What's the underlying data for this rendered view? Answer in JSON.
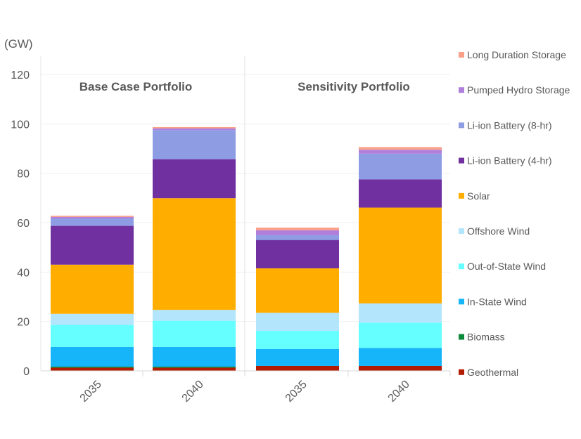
{
  "chart_data": {
    "type": "bar",
    "stacked": true,
    "unit_label": "(GW)",
    "ylim": [
      0,
      120
    ],
    "yticks": [
      0,
      20,
      40,
      60,
      80,
      100,
      120
    ],
    "grid": true,
    "legend_position": "right",
    "panels": [
      {
        "title": "Base Case Portfolio",
        "categories": [
          "2035",
          "2040"
        ]
      },
      {
        "title": "Sensitivity Portfolio",
        "categories": [
          "2035",
          "2040"
        ]
      }
    ],
    "series": [
      {
        "name": "Geothermal",
        "color": "#B31B00",
        "values": [
          1.3,
          1.3,
          2.0,
          2.0
        ]
      },
      {
        "name": "Biomass",
        "color": "#0A8A3A",
        "values": [
          0.4,
          0.4,
          0,
          0
        ]
      },
      {
        "name": "In-State Wind",
        "color": "#16B4F8",
        "values": [
          8.0,
          8.0,
          6.9,
          7.3
        ]
      },
      {
        "name": "Out-of-State Wind",
        "color": "#66FFFF",
        "values": [
          8.9,
          10.6,
          7.3,
          10.2
        ]
      },
      {
        "name": "Offshore Wind",
        "color": "#B3E5FC",
        "values": [
          4.5,
          4.4,
          7.3,
          7.8
        ]
      },
      {
        "name": "Solar",
        "color": "#FFAE00",
        "values": [
          19.9,
          45.2,
          18.0,
          38.8
        ]
      },
      {
        "name": "Li-ion Battery (4-hr)",
        "color": "#7030A0",
        "values": [
          15.7,
          15.8,
          11.5,
          11.4
        ]
      },
      {
        "name": "Li-ion Battery (8-hr)",
        "color": "#8E9DE3",
        "values": [
          3.0,
          11.8,
          1.9,
          10.4
        ]
      },
      {
        "name": "Pumped Hydro Storage",
        "color": "#B07FDB",
        "values": [
          0.6,
          0.7,
          2.0,
          1.6
        ]
      },
      {
        "name": "Long Duration Storage",
        "color": "#F9A08A",
        "values": [
          0.5,
          0.5,
          1.1,
          1.1
        ]
      }
    ]
  }
}
